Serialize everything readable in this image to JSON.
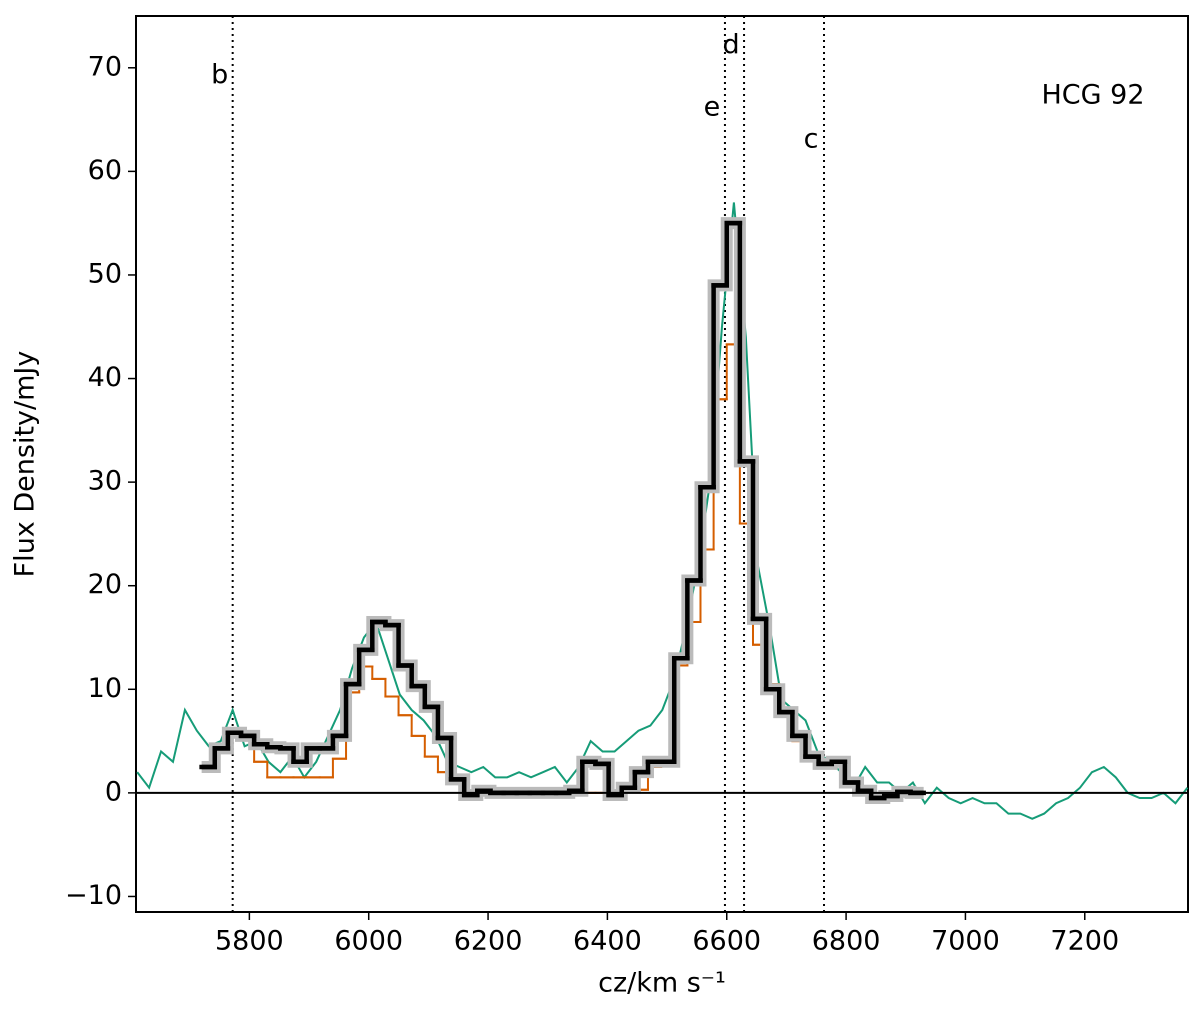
{
  "chart_data": {
    "type": "line",
    "annotation": "HCG 92",
    "x_label": "cz/km s⁻¹",
    "y_label": "Flux Density/mJy",
    "xlim": [
      5610,
      7373
    ],
    "ylim": [
      -11.5,
      75
    ],
    "xticks": [
      5800,
      6000,
      6200,
      6400,
      6600,
      6800,
      7000,
      7200
    ],
    "yticks": [
      {
        "value": -10,
        "label": "−10"
      },
      0,
      10,
      20,
      30,
      40,
      50,
      60,
      70
    ],
    "hline": 0,
    "vlines": [
      {
        "x": 5772,
        "label": "b"
      },
      {
        "x": 6597,
        "label": "e"
      },
      {
        "x": 6629,
        "label": "d"
      },
      {
        "x": 6763,
        "label": "c"
      }
    ],
    "series": [
      {
        "color": "#169c78",
        "x": [
          5612,
          5632,
          5652,
          5672,
          5692,
          5712,
          5732,
          5752,
          5772,
          5792,
          5812,
          5832,
          5852,
          5872,
          5892,
          5912,
          5932,
          5952,
          5972,
          5992,
          6012,
          6032,
          6052,
          6072,
          6092,
          6112,
          6132,
          6152,
          6172,
          6192,
          6212,
          6232,
          6252,
          6272,
          6292,
          6312,
          6332,
          6352,
          6372,
          6392,
          6412,
          6432,
          6452,
          6472,
          6492,
          6512,
          6532,
          6552,
          6572,
          6592,
          6612,
          6632,
          6652,
          6672,
          6692,
          6712,
          6732,
          6752,
          6772,
          6792,
          6812,
          6832,
          6852,
          6872,
          6892,
          6912,
          6932,
          6952,
          6972,
          6992,
          7012,
          7032,
          7052,
          7072,
          7092,
          7112,
          7132,
          7152,
          7172,
          7192,
          7212,
          7232,
          7252,
          7272,
          7292,
          7312,
          7332,
          7352,
          7372
        ],
        "values": [
          2,
          0.5,
          4,
          3,
          8,
          6,
          4.5,
          5,
          8,
          4.5,
          5,
          3,
          2,
          3.5,
          1.5,
          3,
          5.5,
          8,
          12,
          15,
          16.5,
          13,
          9.5,
          8,
          7,
          5.5,
          3,
          2.5,
          2,
          2.5,
          1.5,
          1.5,
          2,
          1.5,
          2,
          2.5,
          1,
          2.5,
          5,
          4,
          4,
          5,
          6,
          6.5,
          8,
          11,
          16,
          22,
          30,
          45,
          57,
          44,
          22,
          16,
          9,
          8,
          7,
          4,
          3,
          2,
          0.5,
          2.5,
          1,
          1,
          0,
          1,
          -1,
          0.5,
          -0.5,
          -1,
          -0.5,
          -1,
          -1,
          -2,
          -2,
          -2.5,
          -2,
          -1,
          -0.5,
          0.5,
          2,
          2.5,
          1.5,
          0,
          -0.5,
          -0.5,
          0,
          -1,
          0.5
        ]
      },
      {
        "color": "#d55e00",
        "bins": [
          5720,
          5742,
          5764,
          5786,
          5808,
          5830,
          5852,
          5874,
          5896,
          5918,
          5940,
          5962,
          5984,
          6006,
          6028,
          6050,
          6072,
          6094,
          6116,
          6138,
          6160,
          6182,
          6204,
          6226,
          6248,
          6270,
          6292,
          6314,
          6336,
          6358,
          6380,
          6402,
          6424,
          6446,
          6468,
          6490,
          6512,
          6534,
          6556,
          6578,
          6600,
          6622,
          6644,
          6666,
          6688,
          6710,
          6732,
          6754,
          6776,
          6798,
          6820,
          6842,
          6864,
          6886,
          6908,
          6930
        ],
        "values": [
          2.5,
          4.3,
          5.8,
          5.5,
          3.0,
          1.5,
          1.5,
          1.5,
          1.5,
          1.5,
          3.3,
          9.7,
          12.2,
          11.0,
          9.3,
          7.5,
          5.5,
          3.5,
          2.0,
          1.0,
          0,
          0.2,
          0,
          0,
          0,
          0,
          0,
          0,
          0,
          0,
          0,
          0,
          0.2,
          0.3,
          2.5,
          2.7,
          12.3,
          16.5,
          23.5,
          38,
          43.3,
          26,
          14.3,
          10.5,
          7.8,
          5.0,
          3.5,
          2.8,
          3.0,
          0.8,
          0.2,
          -0.5,
          -0.3,
          0.1,
          0
        ]
      },
      {
        "color": "#000000",
        "bins": [
          5720,
          5742,
          5764,
          5786,
          5808,
          5830,
          5852,
          5874,
          5896,
          5918,
          5940,
          5962,
          5984,
          6006,
          6028,
          6050,
          6072,
          6094,
          6116,
          6138,
          6160,
          6182,
          6204,
          6226,
          6248,
          6270,
          6292,
          6314,
          6336,
          6358,
          6380,
          6402,
          6424,
          6446,
          6468,
          6490,
          6512,
          6534,
          6556,
          6578,
          6600,
          6622,
          6644,
          6666,
          6688,
          6710,
          6732,
          6754,
          6776,
          6798,
          6820,
          6842,
          6864,
          6886,
          6908,
          6930
        ],
        "values": [
          2.5,
          4.3,
          5.8,
          5.5,
          4.7,
          4.4,
          4.3,
          3.0,
          4.3,
          4.3,
          5.5,
          10.5,
          13.8,
          16.5,
          16.2,
          12.3,
          10.3,
          8.3,
          5.3,
          1.3,
          -0.2,
          0.2,
          0,
          0,
          0,
          0,
          0,
          0,
          0.2,
          3.0,
          2.8,
          -0.2,
          0.5,
          2.0,
          3.0,
          3.0,
          13.0,
          20.5,
          29.5,
          49,
          55,
          32,
          16.8,
          10.0,
          7.8,
          5.5,
          3.5,
          2.8,
          3.0,
          1.0,
          0.2,
          -0.5,
          -0.3,
          0.1,
          0
        ]
      }
    ]
  }
}
